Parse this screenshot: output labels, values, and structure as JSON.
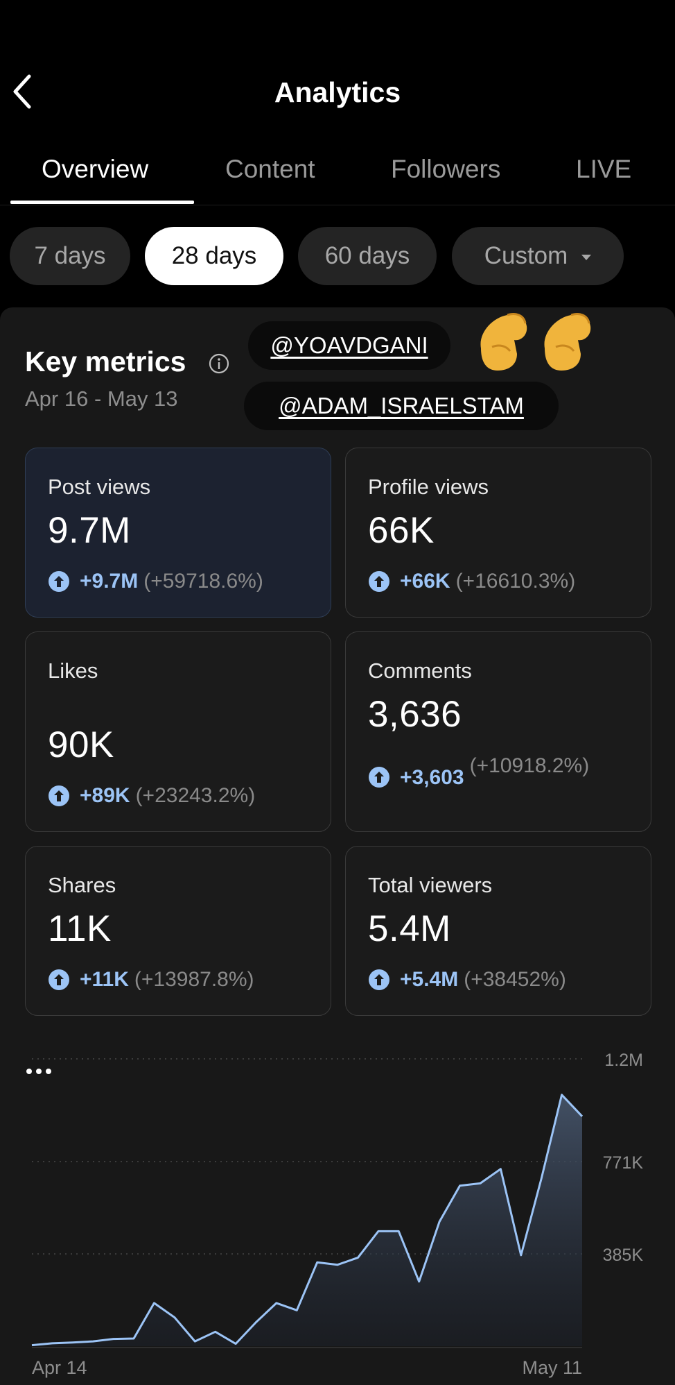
{
  "header": {
    "title": "Analytics"
  },
  "tabs": [
    {
      "label": "Overview",
      "active": true
    },
    {
      "label": "Content",
      "active": false
    },
    {
      "label": "Followers",
      "active": false
    },
    {
      "label": "LIVE",
      "active": false
    }
  ],
  "date_ranges": [
    {
      "label": "7 days",
      "active": false
    },
    {
      "label": "28 days",
      "active": true
    },
    {
      "label": "60 days",
      "active": false
    },
    {
      "label": "Custom",
      "active": false
    }
  ],
  "key_metrics": {
    "title": "Key metrics",
    "date_range": "Apr 16 - May 13"
  },
  "overlay_tags": [
    "@YOAVDGANI",
    "@ADAM_ISRAELSTAM"
  ],
  "metrics": [
    {
      "label": "Post views",
      "value": "9.7M",
      "delta": "+9.7M",
      "delta_pct": "(+59718.6%)"
    },
    {
      "label": "Profile views",
      "value": "66K",
      "delta": "+66K",
      "delta_pct": "(+16610.3%)"
    },
    {
      "label": "Likes",
      "value": "90K",
      "delta": "+89K",
      "delta_pct": "(+23243.2%)"
    },
    {
      "label": "Comments",
      "value": "3,636",
      "delta": "+3,603",
      "delta_pct": "(+10918.2%)"
    },
    {
      "label": "Shares",
      "value": "11K",
      "delta": "+11K",
      "delta_pct": "(+13987.8%)"
    },
    {
      "label": "Total viewers",
      "value": "5.4M",
      "delta": "+5.4M",
      "delta_pct": "(+38452%)"
    }
  ],
  "colors": {
    "accent_blue": "#9cc4f6",
    "line": "#9cc4f6",
    "panel": "#181818"
  },
  "chart_data": {
    "type": "area",
    "title": "",
    "x_start_label": "Apr 14",
    "x_end_label": "May 11",
    "y_ticks": [
      "1.2M",
      "771K",
      "385K"
    ],
    "ylim": [
      0,
      1200000
    ],
    "series": [
      {
        "name": "Post views",
        "values": [
          4000,
          12000,
          15000,
          20000,
          30000,
          32000,
          180000,
          120000,
          20000,
          60000,
          10000,
          100000,
          180000,
          150000,
          350000,
          340000,
          370000,
          480000,
          480000,
          270000,
          520000,
          670000,
          680000,
          740000,
          380000,
          700000,
          1050000,
          960000
        ]
      }
    ]
  }
}
